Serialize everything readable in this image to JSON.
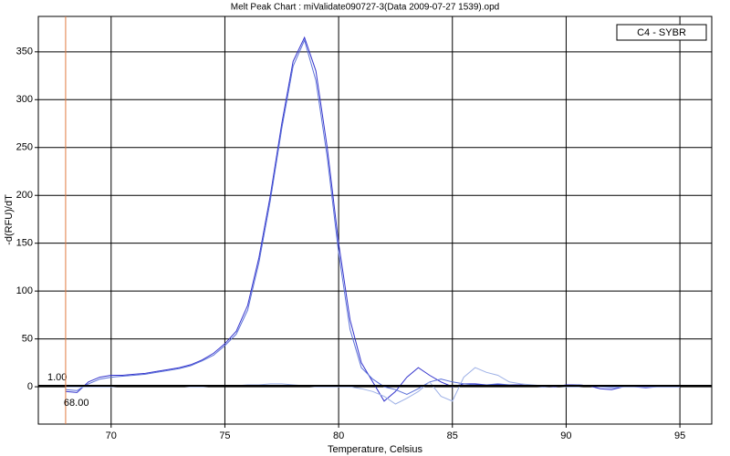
{
  "chart_data": {
    "type": "line",
    "title": "Melt Peak Chart : miValidate090727-3(Data 2009-07-27 1539).opd",
    "x_label": "Temperature, Celsius",
    "y_label": "-d(RFU)/dT",
    "legend_label": "C4 - SYBR",
    "x": [
      68,
      68.5,
      69,
      69.5,
      70,
      70.5,
      71,
      71.5,
      72,
      72.5,
      73,
      73.5,
      74,
      74.5,
      75,
      75.5,
      76,
      76.5,
      77,
      77.5,
      78,
      78.5,
      79,
      79.5,
      80,
      80.5,
      81,
      81.5,
      82,
      82.5,
      83,
      83.5,
      84,
      84.5,
      85,
      85.5,
      86,
      86.5,
      87,
      87.5,
      88,
      88.5,
      89,
      89.5,
      90,
      90.5,
      91,
      91.5,
      92,
      92.5,
      93,
      93.5,
      94,
      94.5,
      95
    ],
    "series": [
      {
        "color": "#3333cc",
        "values": [
          -5,
          -6,
          5,
          10,
          12,
          12,
          13,
          14,
          16,
          18,
          20,
          23,
          28,
          35,
          45,
          58,
          85,
          135,
          200,
          275,
          340,
          365,
          330,
          250,
          150,
          70,
          25,
          5,
          -15,
          -5,
          10,
          20,
          12,
          5,
          0,
          3,
          3,
          2,
          2,
          2,
          2,
          1,
          1,
          0,
          2,
          2,
          1,
          -2,
          -3,
          0,
          0,
          -1,
          0,
          0,
          0
        ]
      },
      {
        "color": "#5a6fd8",
        "values": [
          -3,
          -4,
          3,
          8,
          10,
          11,
          12,
          13,
          15,
          17,
          19,
          22,
          27,
          33,
          43,
          55,
          80,
          130,
          195,
          270,
          335,
          362,
          320,
          240,
          140,
          60,
          20,
          8,
          0,
          -3,
          -8,
          -2,
          5,
          8,
          5,
          3,
          2,
          2,
          3,
          2,
          1,
          1,
          0,
          1,
          1,
          2,
          1,
          0,
          -1,
          0,
          1,
          0,
          0,
          0,
          0
        ]
      },
      {
        "color": "#9db0e6",
        "values": [
          0,
          0,
          0,
          0,
          0,
          1,
          1,
          1,
          1,
          1,
          1,
          0,
          0,
          1,
          1,
          1,
          2,
          2,
          3,
          3,
          2,
          1,
          0,
          0,
          0,
          0,
          -2,
          -5,
          -10,
          -18,
          -12,
          -5,
          5,
          -10,
          -15,
          10,
          20,
          15,
          12,
          5,
          3,
          2,
          1,
          1,
          0,
          0,
          1,
          0,
          0,
          0,
          0,
          0,
          0,
          0,
          0
        ]
      }
    ],
    "threshold": {
      "value": 1,
      "label": "1.00"
    },
    "marker": {
      "value": 68,
      "label": "68.00"
    },
    "xlim": [
      66.8,
      96.4
    ],
    "ylim": [
      -39,
      387
    ],
    "xticks": [
      70,
      75,
      80,
      85,
      90,
      95
    ],
    "yticks": [
      0,
      50,
      100,
      150,
      200,
      250,
      300,
      350
    ],
    "grid": true
  }
}
